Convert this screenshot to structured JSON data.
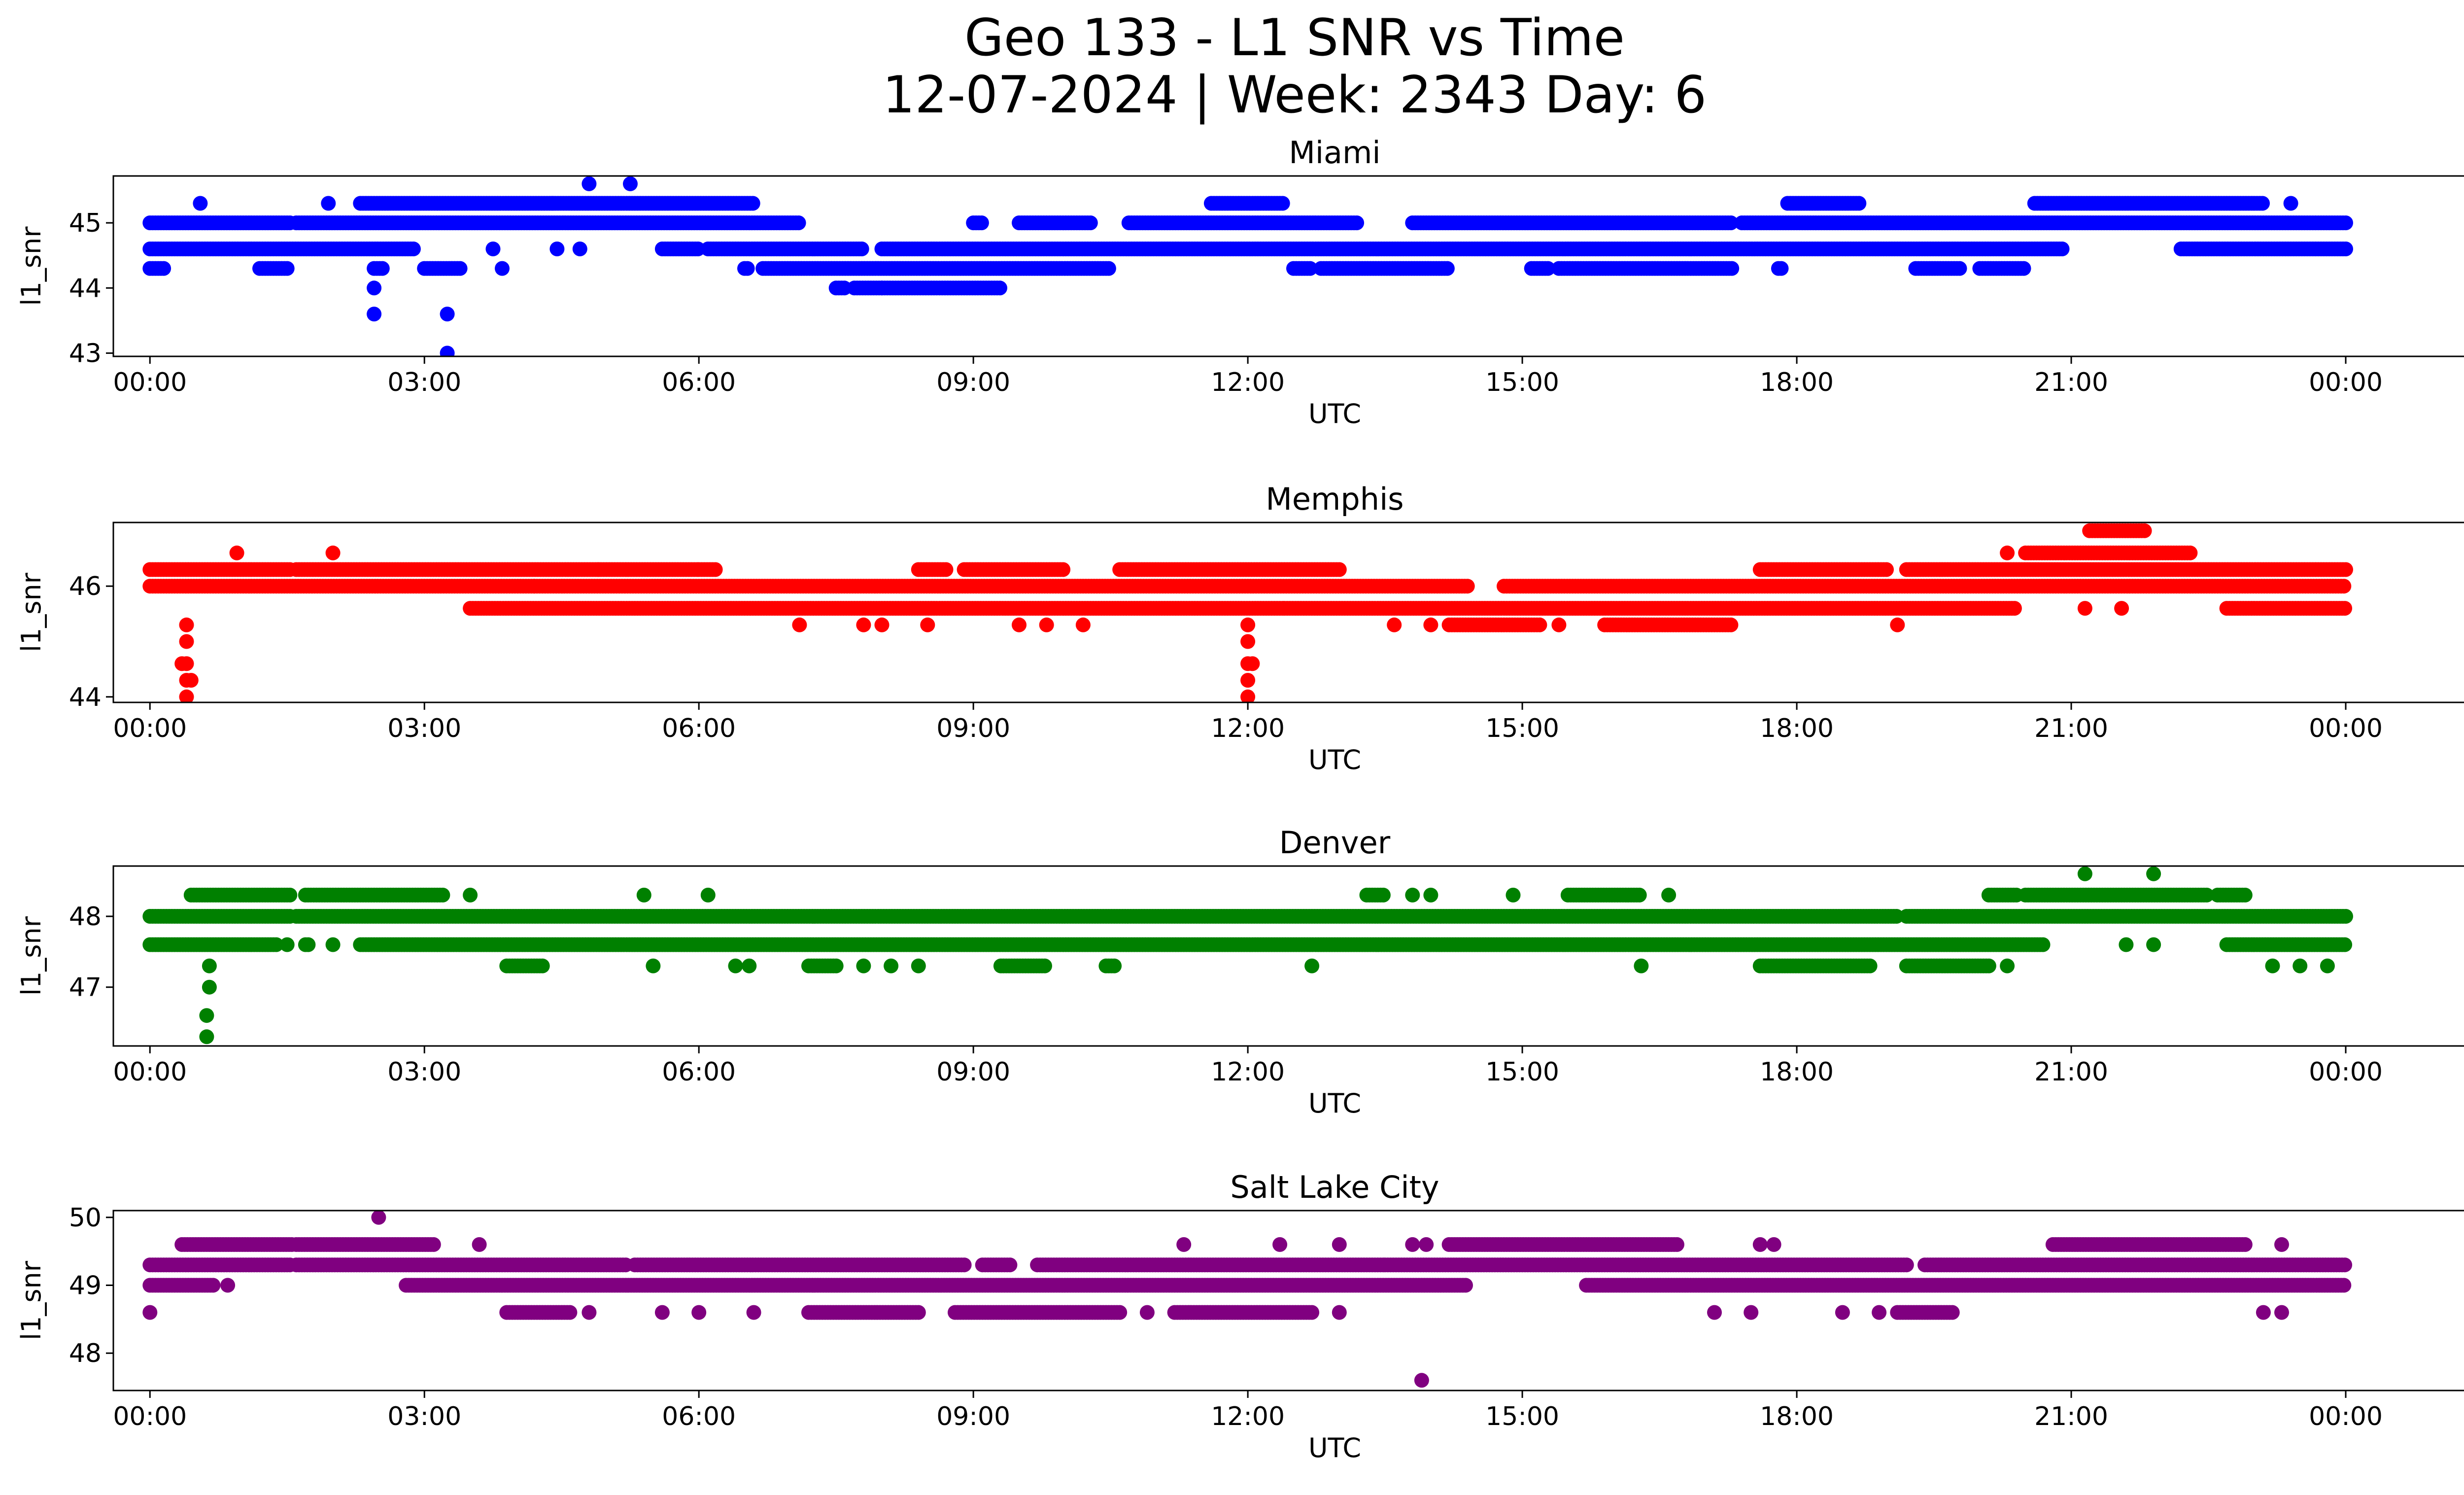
{
  "title_line1": "Geo 133 - L1 SNR vs Time",
  "title_line2": "12-07-2024 | Week: 2343 Day: 6",
  "chart_data": [
    {
      "type": "scatter",
      "title": "Miami",
      "xlabel": "UTC",
      "ylabel": "l1_snr",
      "color": "#0000ff",
      "xlim_hours": [
        -0.4,
        26.3
      ],
      "ylim": [
        42.95,
        45.72
      ],
      "yticks": [
        43,
        44,
        45
      ],
      "xtick_labels": [
        "00:00",
        "03:00",
        "06:00",
        "09:00",
        "12:00",
        "15:00",
        "18:00",
        "21:00",
        "00:00"
      ],
      "bands": [
        {
          "y": 45.0,
          "ranges": [
            [
              0,
              1.55
            ],
            [
              1.6,
              7.1
            ],
            [
              9.0,
              9.1
            ],
            [
              9.5,
              10.3
            ],
            [
              10.7,
              13.2
            ],
            [
              13.8,
              17.3
            ],
            [
              17.4,
              24.0
            ]
          ]
        },
        {
          "y": 44.6,
          "ranges": [
            [
              0,
              2.9
            ],
            [
              5.6,
              6.0
            ],
            [
              6.1,
              7.8
            ],
            [
              8.0,
              20.9
            ],
            [
              22.2,
              24.0
            ]
          ]
        },
        {
          "y": 44.3,
          "ranges": [
            [
              0,
              0.15
            ],
            [
              1.2,
              1.5
            ],
            [
              2.45,
              2.55
            ],
            [
              3.0,
              3.4
            ],
            [
              6.5,
              6.55
            ],
            [
              6.7,
              10.5
            ],
            [
              12.5,
              12.7
            ],
            [
              12.8,
              14.2
            ],
            [
              15.1,
              15.3
            ],
            [
              15.4,
              17.3
            ],
            [
              17.8,
              17.85
            ],
            [
              19.3,
              19.8
            ],
            [
              20.0,
              20.5
            ]
          ]
        },
        {
          "y": 44.0,
          "ranges": [
            [
              7.5,
              7.6
            ],
            [
              7.7,
              8.0
            ],
            [
              8.0,
              9.3
            ]
          ]
        },
        {
          "y": 45.3,
          "ranges": [
            [
              2.3,
              4.4
            ],
            [
              4.4,
              6.6
            ],
            [
              11.6,
              12.4
            ],
            [
              17.9,
              18.7
            ],
            [
              20.6,
              23.1
            ]
          ]
        }
      ],
      "extra_points": [
        [
          0.55,
          45.3
        ],
        [
          1.95,
          45.3
        ],
        [
          4.8,
          45.6
        ],
        [
          5.25,
          45.6
        ],
        [
          23.4,
          45.3
        ],
        [
          2.45,
          44.0
        ],
        [
          2.45,
          43.6
        ],
        [
          3.25,
          43.6
        ],
        [
          3.25,
          43.0
        ],
        [
          3.85,
          44.3
        ],
        [
          4.45,
          44.6
        ],
        [
          4.7,
          44.6
        ],
        [
          3.75,
          44.6
        ]
      ]
    },
    {
      "type": "scatter",
      "title": "Memphis",
      "xlabel": "UTC",
      "ylabel": "l1_snr",
      "color": "#ff0000",
      "xlim_hours": [
        -0.4,
        26.3
      ],
      "ylim": [
        43.9,
        47.15
      ],
      "yticks": [
        44,
        46
      ],
      "xtick_labels": [
        "00:00",
        "03:00",
        "06:00",
        "09:00",
        "12:00",
        "15:00",
        "18:00",
        "21:00",
        "00:00"
      ],
      "bands": [
        {
          "y": 46.3,
          "ranges": [
            [
              0,
              1.55
            ],
            [
              1.6,
              4.9
            ],
            [
              4.9,
              6.0
            ],
            [
              6.0,
              6.2
            ],
            [
              8.4,
              8.7
            ],
            [
              8.9,
              10.0
            ],
            [
              10.6,
              13.0
            ],
            [
              17.6,
              19.0
            ],
            [
              19.2,
              24.0
            ]
          ]
        },
        {
          "y": 46.0,
          "ranges": [
            [
              0,
              4.2
            ],
            [
              4.2,
              14.4
            ],
            [
              14.8,
              24.0
            ]
          ]
        },
        {
          "y": 45.6,
          "ranges": [
            [
              3.5,
              12.4
            ],
            [
              12.4,
              20.4
            ],
            [
              22.7,
              24.0
            ]
          ]
        },
        {
          "y": 45.3,
          "ranges": [
            [
              14.2,
              15.2
            ],
            [
              15.9,
              17.3
            ]
          ]
        },
        {
          "y": 46.6,
          "ranges": [
            [
              20.5,
              22.3
            ]
          ]
        },
        {
          "y": 47.0,
          "ranges": [
            [
              21.2,
              21.8
            ]
          ]
        }
      ],
      "extra_points": [
        [
          0.4,
          45.3
        ],
        [
          0.4,
          45.0
        ],
        [
          0.4,
          44.6
        ],
        [
          0.4,
          44.3
        ],
        [
          0.4,
          44.0
        ],
        [
          0.45,
          44.3
        ],
        [
          0.35,
          44.6
        ],
        [
          12.0,
          45.3
        ],
        [
          12.0,
          45.0
        ],
        [
          12.0,
          44.6
        ],
        [
          12.0,
          44.3
        ],
        [
          12.0,
          44.0
        ],
        [
          12.05,
          44.6
        ],
        [
          0.95,
          46.6
        ],
        [
          2.0,
          46.6
        ],
        [
          7.1,
          45.3
        ],
        [
          7.8,
          45.3
        ],
        [
          8.0,
          45.3
        ],
        [
          8.5,
          45.3
        ],
        [
          9.5,
          45.3
        ],
        [
          9.8,
          45.3
        ],
        [
          10.2,
          45.3
        ],
        [
          13.6,
          45.3
        ],
        [
          14.0,
          45.3
        ],
        [
          15.4,
          45.3
        ],
        [
          19.1,
          45.3
        ],
        [
          20.3,
          46.6
        ],
        [
          21.55,
          45.6
        ],
        [
          21.15,
          45.6
        ]
      ]
    },
    {
      "type": "scatter",
      "title": "Denver",
      "xlabel": "UTC",
      "ylabel": "l1_snr",
      "color": "#008000",
      "xlim_hours": [
        -0.4,
        26.3
      ],
      "ylim": [
        46.17,
        48.71
      ],
      "yticks": [
        47,
        48
      ],
      "xtick_labels": [
        "00:00",
        "03:00",
        "06:00",
        "09:00",
        "12:00",
        "15:00",
        "18:00",
        "21:00",
        "00:00"
      ],
      "bands": [
        {
          "y": 48.3,
          "ranges": [
            [
              0.45,
              1.55
            ],
            [
              1.7,
              3.2
            ],
            [
              20.5,
              22.5
            ],
            [
              13.3,
              13.5
            ],
            [
              15.5,
              16.3
            ],
            [
              20.1,
              20.4
            ],
            [
              22.6,
              22.9
            ]
          ]
        },
        {
          "y": 48.0,
          "ranges": [
            [
              0,
              1.55
            ],
            [
              1.6,
              19.1
            ],
            [
              19.2,
              24.0
            ]
          ]
        },
        {
          "y": 47.6,
          "ranges": [
            [
              0,
              1.4
            ],
            [
              1.7,
              1.75
            ],
            [
              2.3,
              20.7
            ],
            [
              22.7,
              24.0
            ]
          ]
        },
        {
          "y": 47.3,
          "ranges": [
            [
              3.9,
              4.3
            ],
            [
              7.2,
              7.5
            ],
            [
              9.3,
              9.8
            ],
            [
              10.45,
              10.55
            ],
            [
              17.6,
              18.8
            ],
            [
              19.2,
              20.1
            ]
          ]
        }
      ],
      "extra_points": [
        [
          0.65,
          47.3
        ],
        [
          0.65,
          47.0
        ],
        [
          0.62,
          46.6
        ],
        [
          0.62,
          46.3
        ],
        [
          1.5,
          47.6
        ],
        [
          2.0,
          47.6
        ],
        [
          3.5,
          48.3
        ],
        [
          5.4,
          48.3
        ],
        [
          6.1,
          48.3
        ],
        [
          13.8,
          48.3
        ],
        [
          14.0,
          48.3
        ],
        [
          14.9,
          48.3
        ],
        [
          16.6,
          48.3
        ],
        [
          21.15,
          48.6
        ],
        [
          21.9,
          48.6
        ],
        [
          21.6,
          47.6
        ],
        [
          21.9,
          47.6
        ],
        [
          5.5,
          47.3
        ],
        [
          6.4,
          47.3
        ],
        [
          6.55,
          47.3
        ],
        [
          7.8,
          47.3
        ],
        [
          8.1,
          47.3
        ],
        [
          8.4,
          47.3
        ],
        [
          12.7,
          47.3
        ],
        [
          16.3,
          47.3
        ],
        [
          20.3,
          47.3
        ],
        [
          23.2,
          47.3
        ],
        [
          23.5,
          47.3
        ],
        [
          23.8,
          47.3
        ]
      ]
    },
    {
      "type": "scatter",
      "title": "Salt Lake City",
      "xlabel": "UTC",
      "ylabel": "l1_snr",
      "color": "#800080",
      "xlim_hours": [
        -0.4,
        26.3
      ],
      "ylim": [
        47.45,
        50.1
      ],
      "yticks": [
        48,
        49,
        50
      ],
      "xtick_labels": [
        "00:00",
        "03:00",
        "06:00",
        "09:00",
        "12:00",
        "15:00",
        "18:00",
        "21:00",
        "00:00"
      ],
      "bands": [
        {
          "y": 49.6,
          "ranges": [
            [
              0.35,
              1.55
            ],
            [
              1.6,
              3.1
            ],
            [
              14.2,
              16.7
            ],
            [
              20.8,
              22.9
            ]
          ]
        },
        {
          "y": 49.3,
          "ranges": [
            [
              0,
              1.55
            ],
            [
              1.6,
              5.2
            ],
            [
              5.3,
              8.9
            ],
            [
              9.1,
              9.4
            ],
            [
              9.7,
              13.5
            ],
            [
              13.5,
              19.2
            ],
            [
              19.4,
              24.0
            ]
          ]
        },
        {
          "y": 49.0,
          "ranges": [
            [
              0,
              0.7
            ],
            [
              2.8,
              14.4
            ],
            [
              15.7,
              24.0
            ]
          ]
        },
        {
          "y": 48.6,
          "ranges": [
            [
              3.9,
              4.6
            ],
            [
              7.2,
              8.4
            ],
            [
              8.8,
              10.6
            ],
            [
              11.2,
              12.7
            ],
            [
              19.1,
              19.7
            ]
          ]
        }
      ],
      "extra_points": [
        [
          0.0,
          48.6
        ],
        [
          0.85,
          49.0
        ],
        [
          2.5,
          50.0
        ],
        [
          3.6,
          49.6
        ],
        [
          11.3,
          49.6
        ],
        [
          12.35,
          49.6
        ],
        [
          13.0,
          49.6
        ],
        [
          13.8,
          49.6
        ],
        [
          13.95,
          49.6
        ],
        [
          17.6,
          49.6
        ],
        [
          17.75,
          49.6
        ],
        [
          23.3,
          49.6
        ],
        [
          13.9,
          47.6
        ],
        [
          4.8,
          48.6
        ],
        [
          5.6,
          48.6
        ],
        [
          6.0,
          48.6
        ],
        [
          6.6,
          48.6
        ],
        [
          10.9,
          48.6
        ],
        [
          13.0,
          48.6
        ],
        [
          17.1,
          48.6
        ],
        [
          17.5,
          48.6
        ],
        [
          18.5,
          48.6
        ],
        [
          18.9,
          48.6
        ],
        [
          23.1,
          48.6
        ],
        [
          23.3,
          48.6
        ]
      ]
    }
  ]
}
